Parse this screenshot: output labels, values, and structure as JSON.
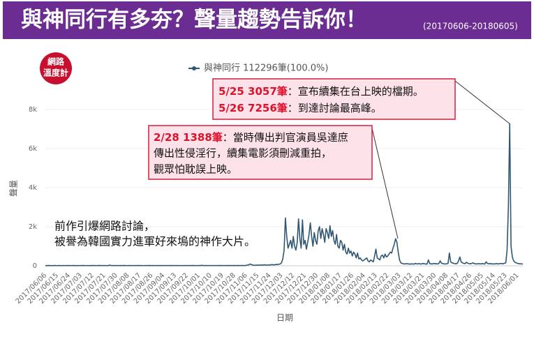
{
  "header": {
    "title": "與神同行有多夯？聲量趨勢告訴你！",
    "date_range": "(20170606-20180605)"
  },
  "logo": {
    "line1": "網路",
    "line2": "溫度計"
  },
  "chart_data": {
    "type": "line",
    "x_label": "日期",
    "y_label": "聲量",
    "ylim": [
      0,
      8000
    ],
    "yticks": [
      0,
      {
        "value": 2000,
        "label": "2k"
      },
      {
        "value": 4000,
        "label": "4k"
      },
      {
        "value": 6000,
        "label": "6k"
      },
      {
        "value": 8000,
        "label": "8k"
      }
    ],
    "grid": true,
    "categories": [
      "2017/06/06",
      null,
      null,
      null,
      null,
      null,
      null,
      null,
      null,
      "2017/06/15",
      null,
      null,
      null,
      null,
      null,
      null,
      null,
      null,
      "2017/06/24",
      null,
      null,
      null,
      null,
      null,
      null,
      null,
      null,
      "2017/07/03",
      null,
      null,
      null,
      null,
      null,
      null,
      null,
      null,
      "2017/07/12",
      null,
      null,
      null,
      null,
      null,
      null,
      null,
      null,
      "2017/07/21",
      null,
      null,
      null,
      null,
      null,
      null,
      null,
      null,
      "2017/07/30",
      null,
      null,
      null,
      null,
      null,
      null,
      null,
      null,
      "2017/08/08",
      null,
      null,
      null,
      null,
      null,
      null,
      null,
      null,
      "2017/08/17",
      null,
      null,
      null,
      null,
      null,
      null,
      null,
      null,
      "2017/08/26",
      null,
      null,
      null,
      null,
      null,
      null,
      null,
      null,
      "2017/09/04",
      null,
      null,
      null,
      null,
      null,
      null,
      null,
      null,
      "2017/09/13",
      null,
      null,
      null,
      null,
      null,
      null,
      null,
      null,
      "2017/09/22",
      null,
      null,
      null,
      null,
      null,
      null,
      null,
      null,
      "2017/10/01",
      null,
      null,
      null,
      null,
      null,
      null,
      null,
      null,
      "2017/10/10",
      null,
      null,
      null,
      null,
      null,
      null,
      null,
      null,
      "2017/10/19",
      null,
      null,
      null,
      null,
      null,
      null,
      null,
      null,
      "2017/10/28",
      null,
      null,
      null,
      null,
      null,
      null,
      null,
      null,
      "2017/11/06",
      null,
      null,
      null,
      null,
      null,
      null,
      null,
      null,
      "2017/11/15",
      null,
      null,
      null,
      null,
      null,
      null,
      null,
      null,
      "2017/11/24",
      null,
      null,
      null,
      null,
      null,
      null,
      null,
      null,
      "2017/12/03",
      null,
      null,
      null,
      null,
      null,
      null,
      null,
      null,
      "2017/12/12",
      null,
      null,
      null,
      null,
      null,
      null,
      null,
      null,
      "2017/12/21",
      null,
      null,
      null,
      null,
      null,
      null,
      null,
      null,
      "2017/12/30",
      null,
      null,
      null,
      null,
      null,
      null,
      null,
      null,
      "2018/01/08",
      null,
      null,
      null,
      null,
      null,
      null,
      null,
      null,
      "2018/01/17",
      null,
      null,
      null,
      null,
      null,
      null,
      null,
      null,
      "2018/01/26",
      null,
      null,
      null,
      null,
      null,
      null,
      null,
      null,
      "2018/02/04",
      null,
      null,
      null,
      null,
      null,
      null,
      null,
      null,
      "2018/02/13",
      null,
      null,
      null,
      null,
      null,
      null,
      null,
      null,
      "2018/02/22",
      null,
      null,
      null,
      null,
      null,
      null,
      null,
      null,
      "2018/03/03",
      null,
      null,
      null,
      null,
      null,
      null,
      null,
      null,
      "2018/03/12",
      null,
      null,
      null,
      null,
      null,
      null,
      null,
      null,
      "2018/03/21",
      null,
      null,
      null,
      null,
      null,
      null,
      null,
      null,
      "2018/03/30",
      null,
      null,
      null,
      null,
      null,
      null,
      null,
      null,
      "2018/04/08",
      null,
      null,
      null,
      null,
      null,
      null,
      null,
      null,
      "2018/04/17",
      null,
      null,
      null,
      null,
      null,
      null,
      null,
      null,
      "2018/04/26",
      null,
      null,
      null,
      null,
      null,
      null,
      null,
      null,
      "2018/05/05",
      null,
      null,
      null,
      null,
      null,
      null,
      null,
      null,
      "2018/05/14",
      null,
      null,
      null,
      null,
      null,
      null,
      null,
      null,
      "2018/05/23",
      null,
      null,
      null,
      null,
      null,
      null,
      null,
      null,
      "2018/06/01",
      null,
      null,
      null,
      null
    ],
    "series": [
      {
        "name": "與神同行 112296筆(100.0%)",
        "color": "#2f5773",
        "values": [
          10,
          8,
          12,
          15,
          9,
          7,
          11,
          14,
          10,
          9,
          12,
          10,
          8,
          13,
          11,
          9,
          10,
          12,
          11,
          10,
          9,
          14,
          12,
          8,
          10,
          11,
          9,
          10,
          12,
          15,
          11,
          9,
          13,
          10,
          8,
          12,
          14,
          11,
          10,
          9,
          12,
          15,
          11,
          10,
          13,
          12,
          10,
          9,
          11,
          35,
          14,
          10,
          12,
          11,
          10,
          9,
          13,
          11,
          12,
          10,
          14,
          11,
          9,
          12,
          11,
          10,
          13,
          9,
          11,
          12,
          10,
          14,
          11,
          13,
          10,
          9,
          12,
          11,
          10,
          14,
          12,
          10,
          12,
          11,
          9,
          13,
          10,
          12,
          11,
          10,
          13,
          11,
          10,
          12,
          9,
          14,
          11,
          10,
          12,
          12,
          10,
          11,
          13,
          10,
          9,
          12,
          11,
          10,
          11,
          13,
          10,
          12,
          14,
          10,
          11,
          9,
          12,
          10,
          12,
          25,
          14,
          11,
          10,
          13,
          12,
          10,
          12,
          11,
          10,
          13,
          12,
          11,
          10,
          14,
          12,
          13,
          12,
          11,
          10,
          12,
          14,
          11,
          12,
          13,
          14,
          12,
          13,
          15,
          12,
          11,
          14,
          13,
          12,
          20,
          35,
          45,
          90,
          60,
          40,
          30,
          25,
          35,
          30,
          40,
          35,
          45,
          30,
          50,
          40,
          35,
          45,
          40,
          50,
          60,
          45,
          55,
          70,
          60,
          80,
          90,
          150,
          350,
          800,
          2450,
          1500,
          900,
          1100,
          1300,
          900,
          1500,
          1000,
          800,
          1200,
          2400,
          1400,
          900,
          2350,
          1100,
          1300,
          850,
          1200,
          1600,
          2200,
          1500,
          1000,
          1700,
          1300,
          1100,
          1800,
          2000,
          1400,
          1900,
          1600,
          1200,
          1900,
          1700,
          1400,
          2050,
          1500,
          1800,
          1300,
          1100,
          1600,
          1000,
          900,
          1300,
          1200,
          800,
          1100,
          700,
          600,
          900,
          650,
          750,
          500,
          700,
          600,
          400,
          650,
          350,
          400,
          300,
          250,
          300,
          350,
          400,
          250,
          200,
          300,
          250,
          200,
          500,
          850,
          400,
          350,
          300,
          500,
          550,
          400,
          600,
          450,
          500,
          600,
          700,
          650,
          900,
          1100,
          1388,
          1200,
          700,
          300,
          150,
          120,
          100,
          90,
          110,
          100,
          95,
          80,
          100,
          90,
          85,
          120,
          100,
          95,
          110,
          90,
          100,
          120,
          100,
          90,
          85,
          300,
          110,
          100,
          90,
          120,
          100,
          110,
          90,
          120,
          250,
          130,
          110,
          100,
          90,
          100,
          120,
          650,
          200,
          150,
          130,
          110,
          100,
          120,
          250,
          450,
          200,
          150,
          120,
          110,
          180,
          130,
          110,
          100,
          120,
          150,
          110,
          100,
          90,
          110,
          100,
          95,
          110,
          100,
          90,
          200,
          120,
          100,
          110,
          95,
          100,
          90,
          100,
          110,
          95,
          100,
          120,
          110,
          100,
          130,
          150,
          800,
          3057,
          7256,
          1000,
          450,
          250,
          180,
          150,
          120,
          110,
          100,
          95,
          90
        ]
      }
    ],
    "annotations": [
      {
        "lines": [
          {
            "highlight": "5/25 3057筆",
            "text": "：宣布續集在台上映的檔期。"
          },
          {
            "highlight": "5/26 7256筆",
            "text": "：到達討論最高峰。"
          }
        ]
      },
      {
        "lines": [
          {
            "highlight": "2/28 1388筆",
            "text": "：當時傳出判官演員吳達庶"
          },
          {
            "text": "傳出性侵淫行，續集電影須刪減重拍，"
          },
          {
            "text": "觀眾怕耽誤上映。"
          }
        ]
      },
      {
        "lines": [
          {
            "text": "前作引爆網路討論，"
          },
          {
            "text": "被譽為韓國實力進軍好來塢的神作大片。"
          }
        ]
      }
    ]
  }
}
